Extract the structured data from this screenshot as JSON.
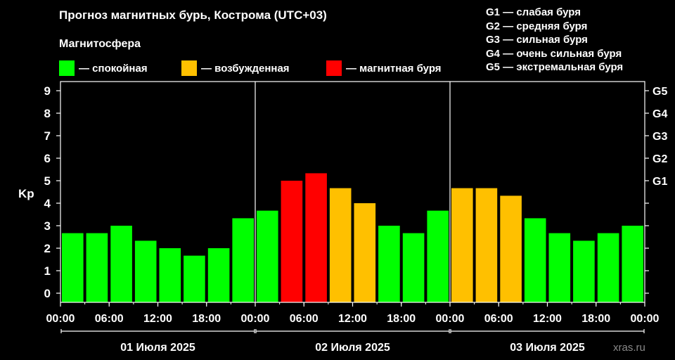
{
  "header": {
    "title": "Прогноз магнитных бурь, Кострома (UTC+03)",
    "legend_title": "Магнитосфера"
  },
  "legend": [
    {
      "label": "— спокойная",
      "color": "#00ff00"
    },
    {
      "label": "— возбужденная",
      "color": "#ffc000"
    },
    {
      "label": "— магнитная буря",
      "color": "#ff0000"
    }
  ],
  "storm_levels": [
    "G1 — слабая буря",
    "G2 — средняя буря",
    "G3 — сильная буря",
    "G4 — очень сильная буря",
    "G5 — экстремальная буря"
  ],
  "watermark": "xras.ru",
  "chart_data": {
    "type": "bar",
    "ylabel": "Kp",
    "ylim": [
      0,
      9
    ],
    "yticks": [
      "0",
      "1",
      "2",
      "3",
      "4",
      "5",
      "6",
      "7",
      "8",
      "9"
    ],
    "right_ticks": [
      {
        "value": 5,
        "label": "G1"
      },
      {
        "value": 6,
        "label": "G2"
      },
      {
        "value": 7,
        "label": "G3"
      },
      {
        "value": 8,
        "label": "G4"
      },
      {
        "value": 9,
        "label": "G5"
      }
    ],
    "xticks": [
      "00:00",
      "06:00",
      "12:00",
      "18:00",
      "00:00",
      "06:00",
      "12:00",
      "18:00",
      "00:00",
      "06:00",
      "12:00",
      "18:00",
      "00:00"
    ],
    "days": [
      "01 Июля 2025",
      "02 Июля 2025",
      "03 Июля 2025"
    ],
    "interval_hours": 3,
    "values": [
      2.67,
      2.67,
      3.0,
      2.33,
      2.0,
      1.67,
      2.0,
      3.33,
      3.67,
      5.0,
      5.33,
      4.67,
      4.0,
      3.0,
      2.67,
      3.67,
      4.67,
      4.67,
      4.33,
      3.33,
      2.67,
      2.33,
      2.67,
      3.0
    ],
    "colors": {
      "quiet": "#00ff00",
      "active": "#ffc000",
      "storm": "#ff0000"
    }
  }
}
